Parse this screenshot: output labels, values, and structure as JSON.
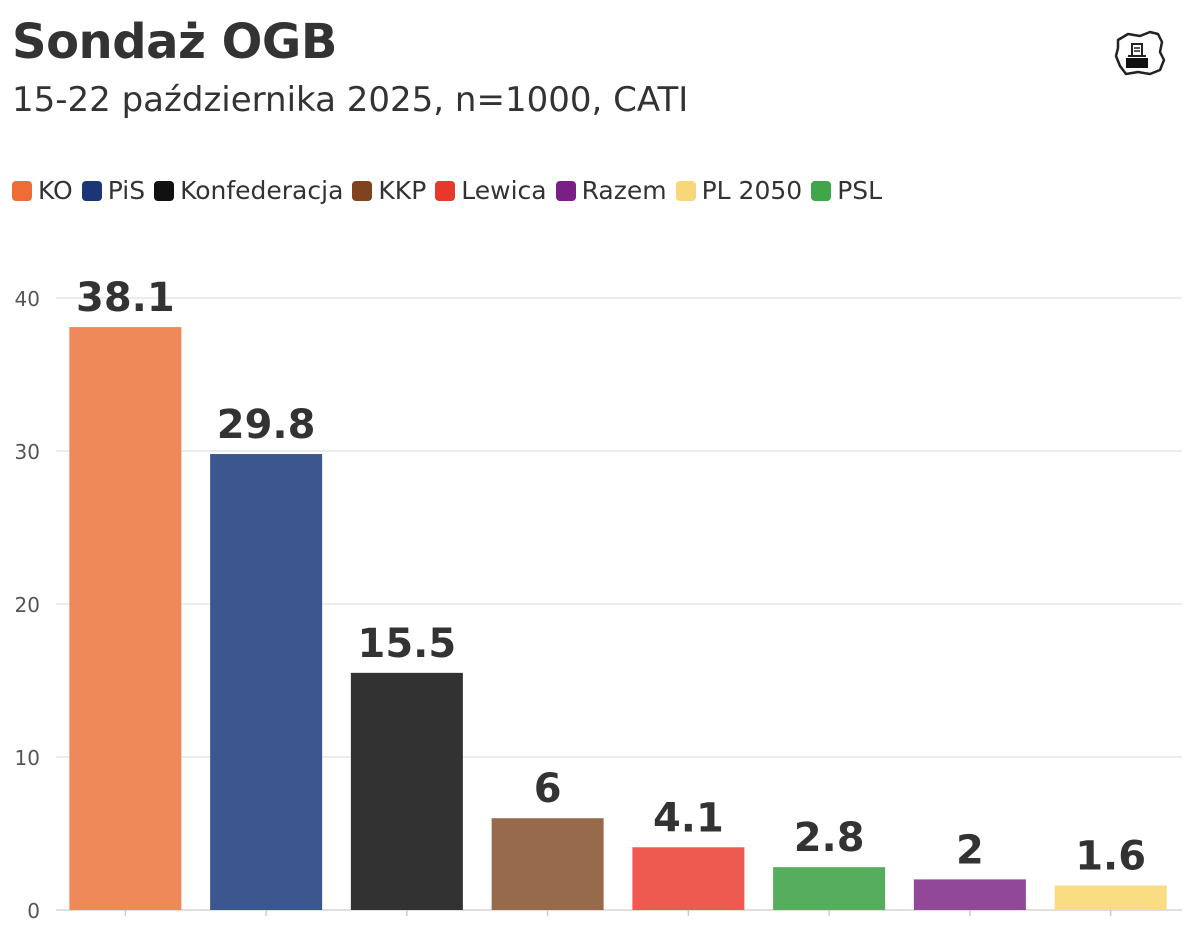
{
  "header": {
    "title": "Sondaż OGB",
    "subtitle": "15-22 października 2025, n=1000, CATI"
  },
  "chart_data": {
    "type": "bar",
    "title": "Sondaż OGB",
    "subtitle": "15-22 października 2025, n=1000, CATI",
    "xlabel": "",
    "ylabel": "",
    "ylim": [
      0,
      40
    ],
    "yticks": [
      0,
      10,
      20,
      30,
      40
    ],
    "grid": true,
    "legend_position": "top-left",
    "legend": [
      {
        "label": "KO",
        "color": "#ef6c35"
      },
      {
        "label": "PiS",
        "color": "#1a3677"
      },
      {
        "label": "Konfederacja",
        "color": "#111111"
      },
      {
        "label": "KKP",
        "color": "#7f4320"
      },
      {
        "label": "Lewica",
        "color": "#e8382b"
      },
      {
        "label": "Razem",
        "color": "#7a1f85"
      },
      {
        "label": "PL 2050",
        "color": "#f9d778"
      },
      {
        "label": "PSL",
        "color": "#3fa64a"
      }
    ],
    "categories": [
      "KO",
      "PiS",
      "Konfederacja",
      "KKP",
      "Lewica",
      "PSL",
      "Razem",
      "PL 2050"
    ],
    "values": [
      38.1,
      29.8,
      15.5,
      6,
      4.1,
      2.8,
      2,
      1.6
    ],
    "value_labels": [
      "38.1",
      "29.8",
      "15.5",
      "6",
      "4.1",
      "2.8",
      "2",
      "1.6"
    ],
    "bar_colors": [
      "#f0895a",
      "#3b578d",
      "#323232",
      "#976a4b",
      "#ee5a4f",
      "#55ad5d",
      "#914897",
      "#fadd83"
    ]
  },
  "logo": {
    "icon": "poland-ballot-icon"
  }
}
